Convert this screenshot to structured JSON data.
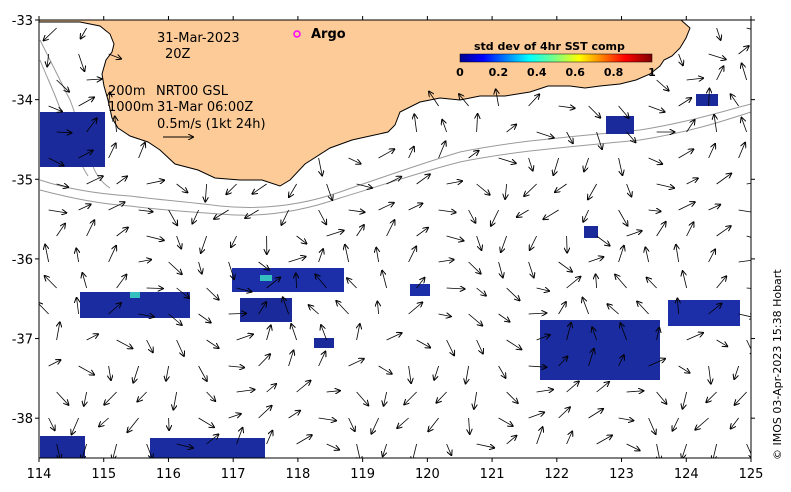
{
  "map": {
    "lon_range": [
      114,
      125
    ],
    "lat_range": [
      -38.5,
      -33
    ],
    "x_ticks": [
      "114",
      "115",
      "116",
      "117",
      "118",
      "119",
      "120",
      "121",
      "122",
      "123",
      "124",
      "125"
    ],
    "y_ticks": [
      "-33",
      "-34",
      "-35",
      "-36",
      "-37",
      "-38"
    ],
    "land_color": "#fdcb98",
    "coast_color": "#000000",
    "isobath_color": "#9a9a9a"
  },
  "annotations": {
    "date": "31-Mar-2023",
    "time": "20Z",
    "depth_200": "200m",
    "depth_1000": "1000m",
    "product": "NRT00 GSL",
    "obs_time": "31-Mar 06:00Z",
    "scale": "0.5m/s (1kt 24h)",
    "argo_label": "Argo",
    "argo_marker_color": "#ff00ff"
  },
  "colorbar": {
    "title": "std dev of 4hr SST comp",
    "ticks": [
      "0",
      "0.2",
      "0.4",
      "0.6",
      "0.8",
      "1"
    ],
    "range": [
      0,
      1
    ]
  },
  "credit": "© IMOS 03-Apr-2023 15:38 Hobart"
}
